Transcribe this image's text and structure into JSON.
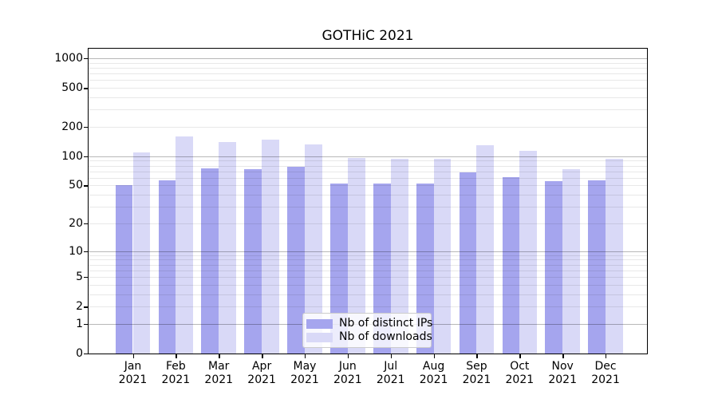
{
  "title": "GOTHiC 2021",
  "legend": {
    "items": [
      {
        "label": "Nb of distinct IPs",
        "color": "#a5a5ee"
      },
      {
        "label": "Nb of downloads",
        "color": "#d9d9f7"
      }
    ]
  },
  "chart_data": {
    "type": "bar",
    "title": "GOTHiC 2021",
    "scale": "log10(1+x)",
    "categories": [
      "Jan 2021",
      "Feb 2021",
      "Mar 2021",
      "Apr 2021",
      "May 2021",
      "Jun 2021",
      "Jul 2021",
      "Aug 2021",
      "Sep 2021",
      "Oct 2021",
      "Nov 2021",
      "Dec 2021"
    ],
    "series": [
      {
        "name": "Nb of distinct IPs",
        "color": "#a5a5ee",
        "values": [
          50,
          57,
          75,
          74,
          78,
          52,
          52,
          52,
          68,
          61,
          55,
          57
        ]
      },
      {
        "name": "Nb of downloads",
        "color": "#d9d9f7",
        "values": [
          110,
          161,
          141,
          149,
          133,
          96,
          95,
          94,
          130,
          113,
          74,
          95
        ]
      }
    ],
    "y_ticks": [
      0,
      1,
      2,
      5,
      10,
      20,
      50,
      100,
      200,
      500,
      1000
    ],
    "ylim": [
      0,
      1270
    ],
    "xlabel": "",
    "ylabel": "",
    "grid": true,
    "legend_position": "lower center"
  }
}
